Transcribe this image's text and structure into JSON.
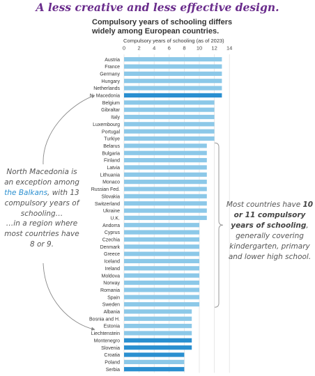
{
  "banner": "A less creative and less effective design.",
  "chart_data": {
    "type": "bar",
    "orientation": "horizontal",
    "title": "Compulsory years of schooling differs widely among European countries.",
    "xlabel": "Compulsory years of schooling (as of 2023)",
    "ylabel": "",
    "xlim": [
      0,
      14
    ],
    "xticks": [
      0,
      2,
      4,
      6,
      8,
      10,
      12,
      14
    ],
    "grid": true,
    "categories": [
      "Austria",
      "France",
      "Germany",
      "Hungary",
      "Netherlands",
      "N. Macedonia",
      "Belgium",
      "Gibraltar",
      "Italy",
      "Luxembourg",
      "Portugal",
      "Turkiye",
      "Belarus",
      "Bulgaria",
      "Finland",
      "Latvia",
      "Lithuania",
      "Monaco",
      "Russian Fed.",
      "Slovakia",
      "Switzerland",
      "Ukraine",
      "U.K.",
      "Andorra",
      "Cyprus",
      "Czechia",
      "Denmark",
      "Greece",
      "Iceland",
      "Ireland",
      "Moldova",
      "Norway",
      "Romania",
      "Spain",
      "Sweden",
      "Albania",
      "Bosnia and H.",
      "Estonia",
      "Liechtenstein",
      "Montenegro",
      "Slovenia",
      "Croatia",
      "Poland",
      "Serbia"
    ],
    "values": [
      13,
      13,
      13,
      13,
      13,
      13,
      12,
      12,
      12,
      12,
      12,
      12,
      11,
      11,
      11,
      11,
      11,
      11,
      11,
      11,
      11,
      11,
      11,
      10,
      10,
      10,
      10,
      10,
      10,
      10,
      10,
      10,
      10,
      10,
      10,
      9,
      9,
      9,
      9,
      9,
      9,
      8,
      8,
      8
    ],
    "highlight": [
      "N. Macedonia",
      "Montenegro",
      "Slovenia",
      "Croatia",
      "Serbia"
    ],
    "colors": {
      "bar": "#8cc8e8",
      "highlight": "#2a8fd0",
      "grid": "#dddddd",
      "bracket": "#999999",
      "arrow": "#888888"
    }
  },
  "annotations": {
    "left_1_a": "North Macedonia is an exception among ",
    "left_1_hl": "the Balkans",
    "left_1_b": ", with 13 compulsory years of schooling…",
    "left_2": "…in a region where most countries have 8 or 9.",
    "right_a": "Most countries have ",
    "right_bold": "10 or 11 compulsory years of schooling",
    "right_b": ", generally covering kindergarten, primary and lower high school."
  }
}
